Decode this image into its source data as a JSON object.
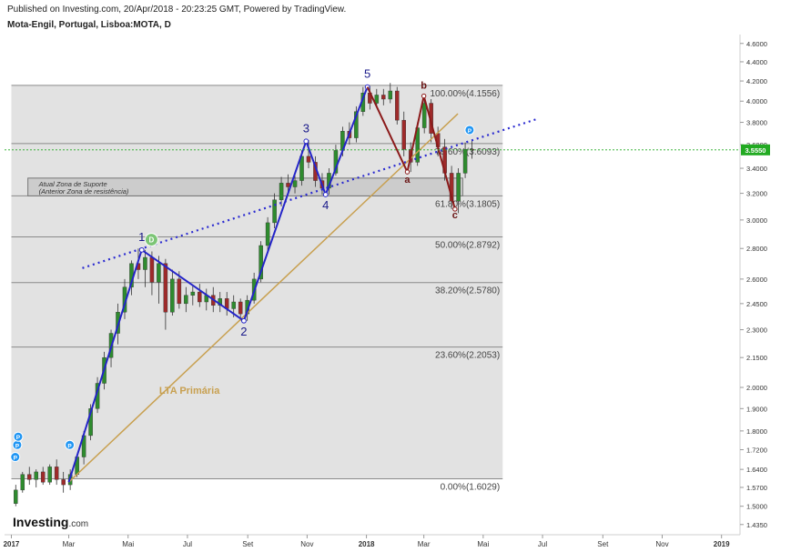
{
  "header": {
    "published": "Published on Investing.com, 20/Apr/2018 - 20:23:25 GMT, Powered by TradingView.",
    "symbol": "Mota-Engil, Portugal, Lisboa:MOTA, D"
  },
  "brand": {
    "name": "Investing",
    "suffix": ".com"
  },
  "chart_data": {
    "type": "candlestick",
    "title": "Mota-Engil, Portugal, Lisboa:MOTA, D",
    "ylim": [
      1.4,
      4.7
    ],
    "y_scale": "log",
    "y_ticks": [
      "4.6000",
      "4.4000",
      "4.2000",
      "4.0000",
      "3.8000",
      "3.6000",
      "3.4000",
      "3.2000",
      "3.0000",
      "2.8000",
      "2.6000",
      "2.4500",
      "2.3000",
      "2.1500",
      "2.0000",
      "1.9000",
      "1.8000",
      "1.7200",
      "1.6400",
      "1.5700",
      "1.5000",
      "1.4350"
    ],
    "x_ticks": [
      "2017",
      "Mar",
      "Mai",
      "Jul",
      "Set",
      "Nov",
      "2018",
      "Mar",
      "Mai",
      "Jul",
      "Set",
      "Nov",
      "2019"
    ],
    "x_tick_dates": [
      "2017-01-01",
      "2017-03-01",
      "2017-05-01",
      "2017-07-01",
      "2017-09-01",
      "2017-11-01",
      "2018-01-01",
      "2018-03-01",
      "2018-05-01",
      "2018-07-01",
      "2018-09-01",
      "2018-11-01",
      "2019-01-01"
    ],
    "xlim": [
      "2016-12-25",
      "2019-01-20"
    ],
    "last_price": "3.5550",
    "colors": {
      "up": "#2e8b2e",
      "down": "#9e2a2a",
      "elliott": "#2424c8",
      "abc": "#8b1a1a",
      "lta": "#c8a050",
      "trend": "#2a2ad0",
      "last": "#22aa22"
    },
    "fib_zone": {
      "from_date": "2017-01-01",
      "to_date": "2018-05-21",
      "low": 1.6029,
      "high": 4.1556
    },
    "fib_levels": [
      {
        "pct": 0.0,
        "value": 1.6029,
        "label": "0.00%(1.6029)"
      },
      {
        "pct": 0.236,
        "value": 2.2053,
        "label": "23.60%(2.2053)"
      },
      {
        "pct": 0.382,
        "value": 2.578,
        "label": "38.20%(2.5780)"
      },
      {
        "pct": 0.5,
        "value": 2.8792,
        "label": "50.00%(2.8792)"
      },
      {
        "pct": 0.618,
        "value": 3.1805,
        "label": "61.80%(3.1805)"
      },
      {
        "pct": 0.786,
        "value": 3.6093,
        "label": "78.60%(3.6093)"
      },
      {
        "pct": 1.0,
        "value": 4.1556,
        "label": "100.00%(4.1556)"
      }
    ],
    "support_zone": {
      "from_date": "2017-01-18",
      "to_date": "2018-04-10",
      "low": 3.18,
      "high": 3.32,
      "line1": "Atual Zona de Suporte",
      "line2": "(Anterior Zona de resistência)"
    },
    "elliott_waves": [
      {
        "label": "",
        "date": "2017-03-01",
        "price": 1.59
      },
      {
        "label": "1",
        "date": "2017-05-15",
        "price": 2.79
      },
      {
        "label": "2",
        "date": "2017-08-28",
        "price": 2.35
      },
      {
        "label": "3",
        "date": "2017-10-31",
        "price": 3.63
      },
      {
        "label": "4",
        "date": "2017-11-20",
        "price": 3.19
      },
      {
        "label": "5",
        "date": "2018-01-02",
        "price": 4.14
      }
    ],
    "abc_waves": [
      {
        "label": "",
        "date": "2018-01-02",
        "price": 4.14
      },
      {
        "label": "a",
        "date": "2018-02-12",
        "price": 3.37
      },
      {
        "label": "b",
        "date": "2018-03-01",
        "price": 4.05
      },
      {
        "label": "c",
        "date": "2018-04-02",
        "price": 3.08
      }
    ],
    "lta": {
      "label": "LTA Primária",
      "from_date": "2017-03-01",
      "from_price": 1.59,
      "to_date": "2018-04-05",
      "to_price": 3.88
    },
    "trendline": {
      "from_date": "2017-03-15",
      "from_price": 2.67,
      "to_date": "2018-06-25",
      "to_price": 3.83
    },
    "markers": [
      {
        "type": "P",
        "date": "2017-01-05",
        "price": 1.69,
        "color": "#2196f3"
      },
      {
        "type": "P",
        "date": "2017-01-07",
        "price": 1.74,
        "color": "#2196f3"
      },
      {
        "type": "P",
        "date": "2017-01-08",
        "price": 1.775,
        "color": "#2196f3"
      },
      {
        "type": "P",
        "date": "2017-03-02",
        "price": 1.74,
        "color": "#2196f3"
      },
      {
        "type": "D",
        "date": "2017-05-25",
        "price": 2.86,
        "color": "#7cc576"
      },
      {
        "type": "P",
        "date": "2018-04-17",
        "price": 3.73,
        "color": "#2196f3"
      }
    ],
    "ohlc_weekly": [
      [
        "2017-01-02",
        1.51,
        1.58,
        1.5,
        1.56
      ],
      [
        "2017-01-09",
        1.56,
        1.63,
        1.55,
        1.62
      ],
      [
        "2017-01-16",
        1.62,
        1.65,
        1.58,
        1.6
      ],
      [
        "2017-01-23",
        1.6,
        1.64,
        1.57,
        1.63
      ],
      [
        "2017-01-30",
        1.63,
        1.65,
        1.58,
        1.59
      ],
      [
        "2017-02-06",
        1.59,
        1.66,
        1.58,
        1.65
      ],
      [
        "2017-02-13",
        1.65,
        1.68,
        1.58,
        1.6
      ],
      [
        "2017-02-20",
        1.6,
        1.63,
        1.55,
        1.58
      ],
      [
        "2017-02-27",
        1.58,
        1.64,
        1.56,
        1.62
      ],
      [
        "2017-03-06",
        1.62,
        1.7,
        1.61,
        1.69
      ],
      [
        "2017-03-13",
        1.69,
        1.8,
        1.66,
        1.78
      ],
      [
        "2017-03-20",
        1.78,
        1.92,
        1.76,
        1.9
      ],
      [
        "2017-03-27",
        1.9,
        2.05,
        1.88,
        2.02
      ],
      [
        "2017-04-03",
        2.02,
        2.18,
        1.99,
        2.15
      ],
      [
        "2017-04-10",
        2.15,
        2.3,
        2.1,
        2.28
      ],
      [
        "2017-04-17",
        2.28,
        2.45,
        2.22,
        2.4
      ],
      [
        "2017-04-24",
        2.4,
        2.6,
        2.36,
        2.55
      ],
      [
        "2017-05-01",
        2.55,
        2.72,
        2.5,
        2.7
      ],
      [
        "2017-05-08",
        2.7,
        2.8,
        2.6,
        2.66
      ],
      [
        "2017-05-15",
        2.66,
        2.79,
        2.55,
        2.74
      ],
      [
        "2017-05-22",
        2.74,
        2.78,
        2.5,
        2.58
      ],
      [
        "2017-05-29",
        2.58,
        2.75,
        2.45,
        2.7
      ],
      [
        "2017-06-05",
        2.7,
        2.73,
        2.3,
        2.4
      ],
      [
        "2017-06-12",
        2.4,
        2.66,
        2.38,
        2.6
      ],
      [
        "2017-06-19",
        2.6,
        2.65,
        2.42,
        2.45
      ],
      [
        "2017-06-26",
        2.45,
        2.55,
        2.4,
        2.5
      ],
      [
        "2017-07-03",
        2.5,
        2.56,
        2.44,
        2.52
      ],
      [
        "2017-07-10",
        2.52,
        2.57,
        2.43,
        2.46
      ],
      [
        "2017-07-17",
        2.46,
        2.54,
        2.41,
        2.5
      ],
      [
        "2017-07-24",
        2.5,
        2.55,
        2.4,
        2.44
      ],
      [
        "2017-07-31",
        2.44,
        2.52,
        2.4,
        2.48
      ],
      [
        "2017-08-07",
        2.48,
        2.52,
        2.38,
        2.42
      ],
      [
        "2017-08-14",
        2.42,
        2.5,
        2.37,
        2.46
      ],
      [
        "2017-08-21",
        2.46,
        2.48,
        2.35,
        2.39
      ],
      [
        "2017-08-28",
        2.39,
        2.5,
        2.35,
        2.47
      ],
      [
        "2017-09-04",
        2.47,
        2.64,
        2.45,
        2.6
      ],
      [
        "2017-09-11",
        2.6,
        2.85,
        2.58,
        2.82
      ],
      [
        "2017-09-18",
        2.82,
        3.02,
        2.78,
        2.98
      ],
      [
        "2017-09-25",
        2.98,
        3.2,
        2.94,
        3.15
      ],
      [
        "2017-10-02",
        3.15,
        3.33,
        3.1,
        3.28
      ],
      [
        "2017-10-09",
        3.28,
        3.35,
        3.2,
        3.25
      ],
      [
        "2017-10-16",
        3.25,
        3.34,
        3.2,
        3.3
      ],
      [
        "2017-10-23",
        3.3,
        3.55,
        3.26,
        3.5
      ],
      [
        "2017-10-30",
        3.5,
        3.64,
        3.4,
        3.45
      ],
      [
        "2017-11-06",
        3.45,
        3.5,
        3.25,
        3.3
      ],
      [
        "2017-11-13",
        3.3,
        3.36,
        3.19,
        3.24
      ],
      [
        "2017-11-20",
        3.24,
        3.4,
        3.19,
        3.36
      ],
      [
        "2017-11-27",
        3.36,
        3.6,
        3.34,
        3.55
      ],
      [
        "2017-12-04",
        3.55,
        3.76,
        3.5,
        3.72
      ],
      [
        "2017-12-11",
        3.72,
        3.8,
        3.6,
        3.66
      ],
      [
        "2017-12-18",
        3.66,
        3.95,
        3.62,
        3.9
      ],
      [
        "2017-12-25",
        3.9,
        4.14,
        3.86,
        4.08
      ],
      [
        "2018-01-01",
        4.08,
        4.15,
        3.92,
        3.98
      ],
      [
        "2018-01-08",
        3.98,
        4.12,
        3.94,
        4.06
      ],
      [
        "2018-01-15",
        4.06,
        4.12,
        3.96,
        4.02
      ],
      [
        "2018-01-22",
        4.02,
        4.18,
        3.98,
        4.1
      ],
      [
        "2018-01-29",
        4.1,
        4.14,
        3.78,
        3.82
      ],
      [
        "2018-02-05",
        3.82,
        3.9,
        3.5,
        3.56
      ],
      [
        "2018-02-12",
        3.56,
        3.62,
        3.37,
        3.45
      ],
      [
        "2018-02-19",
        3.45,
        3.8,
        3.42,
        3.75
      ],
      [
        "2018-02-26",
        3.75,
        4.05,
        3.7,
        3.98
      ],
      [
        "2018-03-05",
        3.98,
        4.02,
        3.62,
        3.7
      ],
      [
        "2018-03-12",
        3.7,
        3.76,
        3.5,
        3.58
      ],
      [
        "2018-03-19",
        3.58,
        3.65,
        3.3,
        3.36
      ],
      [
        "2018-03-26",
        3.36,
        3.42,
        3.08,
        3.14
      ],
      [
        "2018-04-02",
        3.14,
        3.4,
        3.05,
        3.36
      ],
      [
        "2018-04-09",
        3.36,
        3.62,
        3.32,
        3.56
      ],
      [
        "2018-04-16",
        3.56,
        3.64,
        3.48,
        3.555
      ]
    ]
  }
}
